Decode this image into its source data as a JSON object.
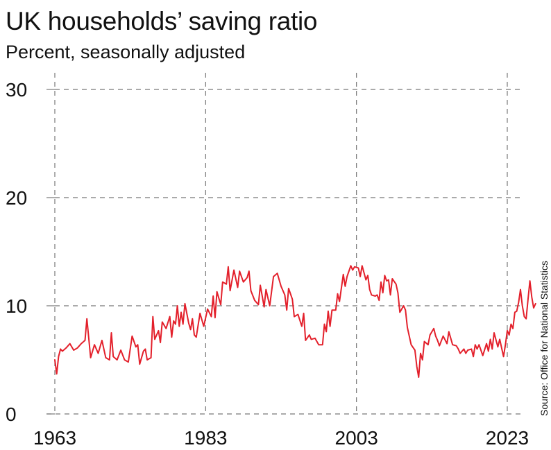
{
  "title": "UK households’ saving ratio",
  "subtitle": "Percent, seasonally adjusted",
  "source": "Source: Office for National Statistics",
  "colors": {
    "line": "#e3202b",
    "grid": "#777777",
    "axis": "#333333"
  },
  "chart_data": {
    "type": "line",
    "title": "UK households’ saving ratio",
    "subtitle": "Percent, seasonally adjusted",
    "xlabel": "",
    "ylabel": "",
    "xlim": [
      1963,
      2024.2
    ],
    "ylim": [
      0,
      30
    ],
    "x_ticks": [
      1963,
      1983,
      2003,
      2023
    ],
    "y_ticks": [
      0,
      10,
      20,
      30
    ],
    "grid": true,
    "series": [
      {
        "values": [
          [
            1963.0,
            5.0
          ],
          [
            1963.25,
            3.7
          ],
          [
            1963.5,
            5.3
          ],
          [
            1963.75,
            6.0
          ],
          [
            1964.0,
            5.8
          ],
          [
            1964.5,
            6.1
          ],
          [
            1965.0,
            6.5
          ],
          [
            1965.5,
            5.9
          ],
          [
            1966.0,
            6.1
          ],
          [
            1966.5,
            6.5
          ],
          [
            1967.0,
            6.8
          ],
          [
            1967.25,
            8.8
          ],
          [
            1967.75,
            5.2
          ],
          [
            1968.25,
            6.4
          ],
          [
            1968.75,
            5.6
          ],
          [
            1969.25,
            6.8
          ],
          [
            1969.75,
            5.2
          ],
          [
            1970.25,
            5.0
          ],
          [
            1970.5,
            7.5
          ],
          [
            1970.75,
            5.3
          ],
          [
            1971.25,
            5.0
          ],
          [
            1971.75,
            5.9
          ],
          [
            1972.25,
            5.0
          ],
          [
            1972.75,
            4.8
          ],
          [
            1973.25,
            7.2
          ],
          [
            1973.75,
            6.2
          ],
          [
            1974.0,
            6.4
          ],
          [
            1974.25,
            4.6
          ],
          [
            1974.75,
            5.8
          ],
          [
            1975.0,
            6.0
          ],
          [
            1975.25,
            5.0
          ],
          [
            1975.75,
            5.2
          ],
          [
            1976.0,
            9.0
          ],
          [
            1976.25,
            6.9
          ],
          [
            1976.75,
            7.7
          ],
          [
            1977.0,
            6.6
          ],
          [
            1977.25,
            8.5
          ],
          [
            1977.75,
            7.9
          ],
          [
            1978.25,
            9.0
          ],
          [
            1978.5,
            7.1
          ],
          [
            1978.75,
            8.6
          ],
          [
            1979.0,
            8.3
          ],
          [
            1979.25,
            10.0
          ],
          [
            1979.5,
            8.1
          ],
          [
            1979.75,
            9.4
          ],
          [
            1980.0,
            8.3
          ],
          [
            1980.25,
            10.2
          ],
          [
            1980.75,
            8.4
          ],
          [
            1981.0,
            7.8
          ],
          [
            1981.25,
            8.8
          ],
          [
            1981.5,
            7.3
          ],
          [
            1981.75,
            7.1
          ],
          [
            1982.25,
            9.3
          ],
          [
            1982.75,
            8.1
          ],
          [
            1983.25,
            9.7
          ],
          [
            1983.75,
            9.0
          ],
          [
            1984.0,
            10.9
          ],
          [
            1984.25,
            8.9
          ],
          [
            1984.5,
            11.3
          ],
          [
            1985.0,
            10.1
          ],
          [
            1985.25,
            12.2
          ],
          [
            1985.75,
            12.0
          ],
          [
            1986.0,
            13.6
          ],
          [
            1986.25,
            11.4
          ],
          [
            1986.75,
            13.3
          ],
          [
            1987.25,
            11.7
          ],
          [
            1987.5,
            13.2
          ],
          [
            1988.0,
            12.2
          ],
          [
            1988.5,
            12.6
          ],
          [
            1988.75,
            13.2
          ],
          [
            1989.0,
            11.4
          ],
          [
            1989.5,
            10.5
          ],
          [
            1990.0,
            10.1
          ],
          [
            1990.25,
            11.9
          ],
          [
            1990.75,
            9.9
          ],
          [
            1991.0,
            11.5
          ],
          [
            1991.5,
            10.0
          ],
          [
            1992.0,
            12.7
          ],
          [
            1992.5,
            13.0
          ],
          [
            1993.0,
            11.8
          ],
          [
            1993.5,
            11.0
          ],
          [
            1993.75,
            9.6
          ],
          [
            1994.0,
            11.6
          ],
          [
            1994.5,
            10.6
          ],
          [
            1994.75,
            9.0
          ],
          [
            1995.25,
            9.2
          ],
          [
            1995.75,
            8.1
          ],
          [
            1996.0,
            9.3
          ],
          [
            1996.25,
            6.8
          ],
          [
            1996.75,
            7.3
          ],
          [
            1997.0,
            6.9
          ],
          [
            1997.5,
            7.0
          ],
          [
            1998.0,
            6.4
          ],
          [
            1998.5,
            6.4
          ],
          [
            1998.75,
            8.3
          ],
          [
            1999.0,
            7.6
          ],
          [
            1999.25,
            9.5
          ],
          [
            1999.5,
            8.1
          ],
          [
            1999.75,
            9.6
          ],
          [
            2000.25,
            9.6
          ],
          [
            2000.5,
            11.1
          ],
          [
            2000.75,
            10.4
          ],
          [
            2001.25,
            12.9
          ],
          [
            2001.5,
            11.8
          ],
          [
            2001.75,
            12.7
          ],
          [
            2002.25,
            13.7
          ],
          [
            2002.5,
            13.3
          ],
          [
            2002.75,
            13.6
          ],
          [
            2003.25,
            13.5
          ],
          [
            2003.5,
            12.7
          ],
          [
            2003.75,
            13.7
          ],
          [
            2004.25,
            12.4
          ],
          [
            2004.5,
            12.8
          ],
          [
            2004.75,
            11.5
          ],
          [
            2005.0,
            11.0
          ],
          [
            2005.5,
            10.9
          ],
          [
            2005.75,
            11.0
          ],
          [
            2006.0,
            10.5
          ],
          [
            2006.25,
            12.2
          ],
          [
            2006.5,
            11.2
          ],
          [
            2006.75,
            12.8
          ],
          [
            2007.0,
            12.3
          ],
          [
            2007.25,
            12.4
          ],
          [
            2007.5,
            11.0
          ],
          [
            2007.75,
            12.5
          ],
          [
            2008.25,
            12.0
          ],
          [
            2008.5,
            11.2
          ],
          [
            2008.75,
            9.4
          ],
          [
            2009.25,
            10.0
          ],
          [
            2009.5,
            9.6
          ],
          [
            2009.75,
            8.0
          ],
          [
            2010.25,
            6.4
          ],
          [
            2010.75,
            5.9
          ],
          [
            2011.0,
            4.4
          ],
          [
            2011.25,
            3.4
          ],
          [
            2011.5,
            5.6
          ],
          [
            2011.75,
            5.0
          ],
          [
            2012.0,
            6.7
          ],
          [
            2012.5,
            6.4
          ],
          [
            2012.75,
            7.3
          ],
          [
            2013.25,
            7.9
          ],
          [
            2013.5,
            7.2
          ],
          [
            2013.75,
            6.8
          ],
          [
            2014.0,
            6.3
          ],
          [
            2014.5,
            7.2
          ],
          [
            2015.0,
            6.5
          ],
          [
            2015.25,
            7.6
          ],
          [
            2015.75,
            6.4
          ],
          [
            2016.25,
            6.3
          ],
          [
            2016.5,
            6.0
          ],
          [
            2016.75,
            5.6
          ],
          [
            2017.25,
            6.0
          ],
          [
            2017.5,
            5.6
          ],
          [
            2017.75,
            5.9
          ],
          [
            2018.25,
            6.0
          ],
          [
            2018.5,
            5.3
          ],
          [
            2018.75,
            6.4
          ],
          [
            2019.0,
            6.0
          ],
          [
            2019.25,
            6.4
          ],
          [
            2019.75,
            5.4
          ],
          [
            2020.25,
            6.5
          ],
          [
            2020.5,
            5.8
          ],
          [
            2020.75,
            6.9
          ],
          [
            2021.0,
            6.0
          ],
          [
            2021.25,
            7.5
          ],
          [
            2021.75,
            6.2
          ],
          [
            2022.0,
            6.9
          ],
          [
            2022.5,
            5.3
          ],
          [
            2022.75,
            6.4
          ],
          [
            2023.0,
            7.7
          ],
          [
            2023.25,
            7.3
          ],
          [
            2023.5,
            8.3
          ],
          [
            2023.75,
            7.9
          ],
          [
            2024.0,
            9.4
          ],
          [
            2024.25,
            9.5
          ],
          [
            2024.5,
            10.3
          ],
          [
            2024.75,
            11.5
          ],
          [
            2025.0,
            10.0
          ],
          [
            2025.25,
            9.0
          ],
          [
            2025.5,
            8.8
          ],
          [
            2025.75,
            10.6
          ],
          [
            2026.0,
            12.3
          ],
          [
            2026.25,
            10.8
          ],
          [
            2026.5,
            9.8
          ],
          [
            2026.75,
            10.2
          ]
        ]
      }
    ]
  }
}
